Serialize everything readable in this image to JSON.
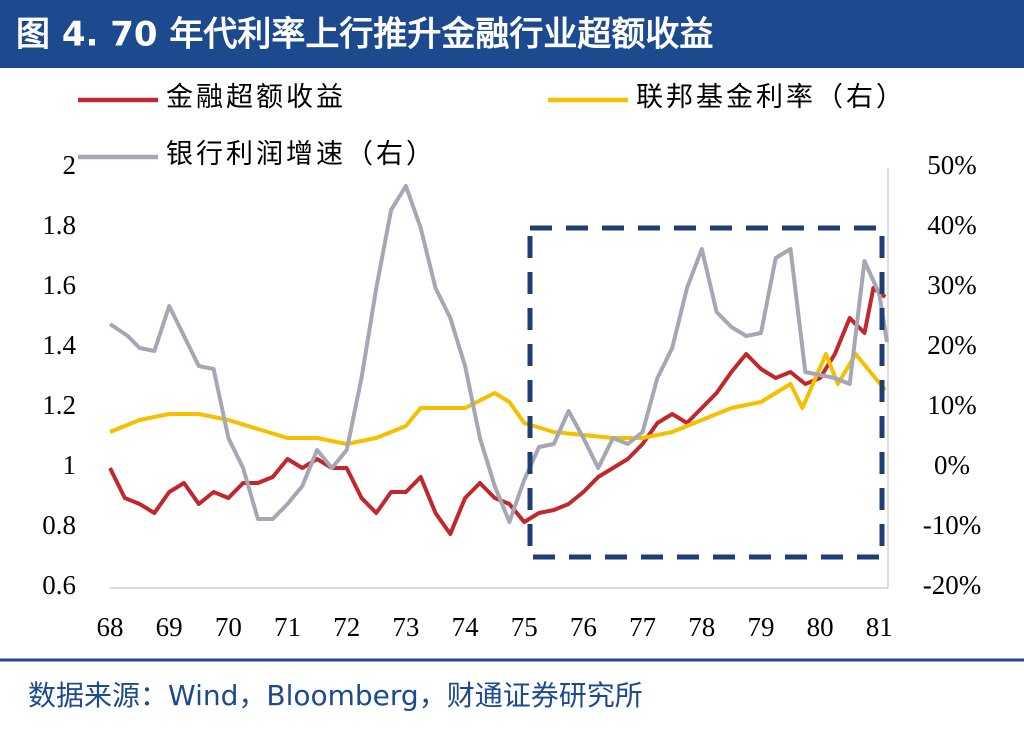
{
  "title": "图 4. 70 年代利率上行推升金融行业超额收益",
  "source": "数据来源：Wind，Bloomberg，财通证券研究所",
  "chart_data": {
    "type": "line",
    "xlim": [
      68,
      81.13
    ],
    "xticks": [
      68,
      69,
      70,
      71,
      72,
      73,
      74,
      75,
      76,
      77,
      78,
      79,
      80,
      81
    ],
    "ylim": [
      0.6,
      2
    ],
    "yticks": [
      0.6,
      0.8,
      1,
      1.2,
      1.4,
      1.6,
      1.8,
      2
    ],
    "y2lim": [
      -20,
      50
    ],
    "y2ticks": [
      {
        "value": -20,
        "label": "-20%"
      },
      {
        "value": -10,
        "label": "-10%"
      },
      {
        "value": 0,
        "label": "0%"
      },
      {
        "value": 10,
        "label": "10%"
      },
      {
        "value": 20,
        "label": "20%"
      },
      {
        "value": 30,
        "label": "30%"
      },
      {
        "value": 40,
        "label": "40%"
      },
      {
        "value": 50,
        "label": "50%"
      }
    ],
    "series": [
      {
        "name": "金融超额收益",
        "color": "#c0282d",
        "x": [
          68.0,
          68.25,
          68.5,
          68.75,
          69.0,
          69.25,
          69.5,
          69.75,
          70.0,
          70.25,
          70.5,
          70.75,
          71.0,
          71.25,
          71.5,
          71.75,
          72.0,
          72.25,
          72.5,
          72.75,
          73.0,
          73.25,
          73.5,
          73.75,
          74.0,
          74.25,
          74.5,
          74.75,
          75.0,
          75.25,
          75.5,
          75.75,
          76.0,
          76.25,
          76.5,
          76.75,
          77.0,
          77.25,
          77.5,
          77.75,
          78.0,
          78.25,
          78.5,
          78.75,
          79.0,
          79.25,
          79.5,
          79.75,
          80.0,
          80.25,
          80.5,
          80.75,
          80.9,
          81.1
        ],
        "values": [
          1.0,
          0.9,
          0.88,
          0.85,
          0.92,
          0.95,
          0.88,
          0.92,
          0.9,
          0.95,
          0.95,
          0.97,
          1.03,
          1.0,
          1.03,
          1.0,
          1.0,
          0.9,
          0.85,
          0.92,
          0.92,
          0.97,
          0.85,
          0.78,
          0.9,
          0.95,
          0.9,
          0.88,
          0.82,
          0.85,
          0.86,
          0.88,
          0.92,
          0.97,
          1.0,
          1.03,
          1.08,
          1.15,
          1.18,
          1.15,
          1.2,
          1.25,
          1.32,
          1.38,
          1.33,
          1.3,
          1.32,
          1.28,
          1.3,
          1.38,
          1.5,
          1.45,
          1.6,
          1.57
        ]
      },
      {
        "name": "联邦基金利率（右）",
        "color": "#f5c000",
        "axis": "y2",
        "x": [
          68.0,
          68.5,
          69.0,
          69.5,
          70.0,
          70.5,
          71.0,
          71.5,
          72.0,
          72.5,
          73.0,
          73.25,
          73.5,
          74.0,
          74.5,
          74.75,
          75.0,
          75.5,
          76.0,
          76.5,
          77.0,
          77.5,
          78.0,
          78.5,
          79.0,
          79.5,
          79.7,
          80.1,
          80.3,
          80.6,
          81.1
        ],
        "values": [
          6,
          8,
          9,
          9,
          8,
          6.5,
          5,
          5,
          4,
          5,
          7,
          10,
          10,
          10,
          12.5,
          11,
          7.5,
          6,
          5.5,
          5,
          5,
          6,
          8,
          10,
          11,
          14,
          10,
          19,
          14,
          19,
          13
        ]
      },
      {
        "name": "银行利润增速（右）",
        "color": "#a5a8b4",
        "axis": "y2",
        "x": [
          68.0,
          68.3,
          68.5,
          68.75,
          69.0,
          69.25,
          69.5,
          69.75,
          70.0,
          70.25,
          70.5,
          70.75,
          71.0,
          71.25,
          71.5,
          71.75,
          72.0,
          72.25,
          72.5,
          72.75,
          73.0,
          73.25,
          73.5,
          73.75,
          74.0,
          74.25,
          74.5,
          74.75,
          75.0,
          75.25,
          75.5,
          75.75,
          76.0,
          76.25,
          76.5,
          76.75,
          77.0,
          77.25,
          77.5,
          77.75,
          78.0,
          78.25,
          78.5,
          78.75,
          79.0,
          79.25,
          79.5,
          79.75,
          80.0,
          80.25,
          80.5,
          80.75,
          81.0,
          81.13
        ],
        "values": [
          24,
          22,
          20,
          19.5,
          27,
          22,
          17,
          16.5,
          5,
          0,
          -8.5,
          -8.5,
          -6,
          -3,
          3,
          0,
          3,
          15,
          30,
          43,
          47,
          40,
          30,
          25,
          17,
          5,
          -3,
          -9,
          -2,
          3.5,
          4,
          9.5,
          5,
          0,
          5,
          4,
          6,
          15,
          20,
          30,
          36.5,
          26,
          23.5,
          22,
          22.5,
          35,
          36.5,
          16,
          15.5,
          15,
          14,
          34.5,
          29,
          21
        ]
      }
    ]
  }
}
